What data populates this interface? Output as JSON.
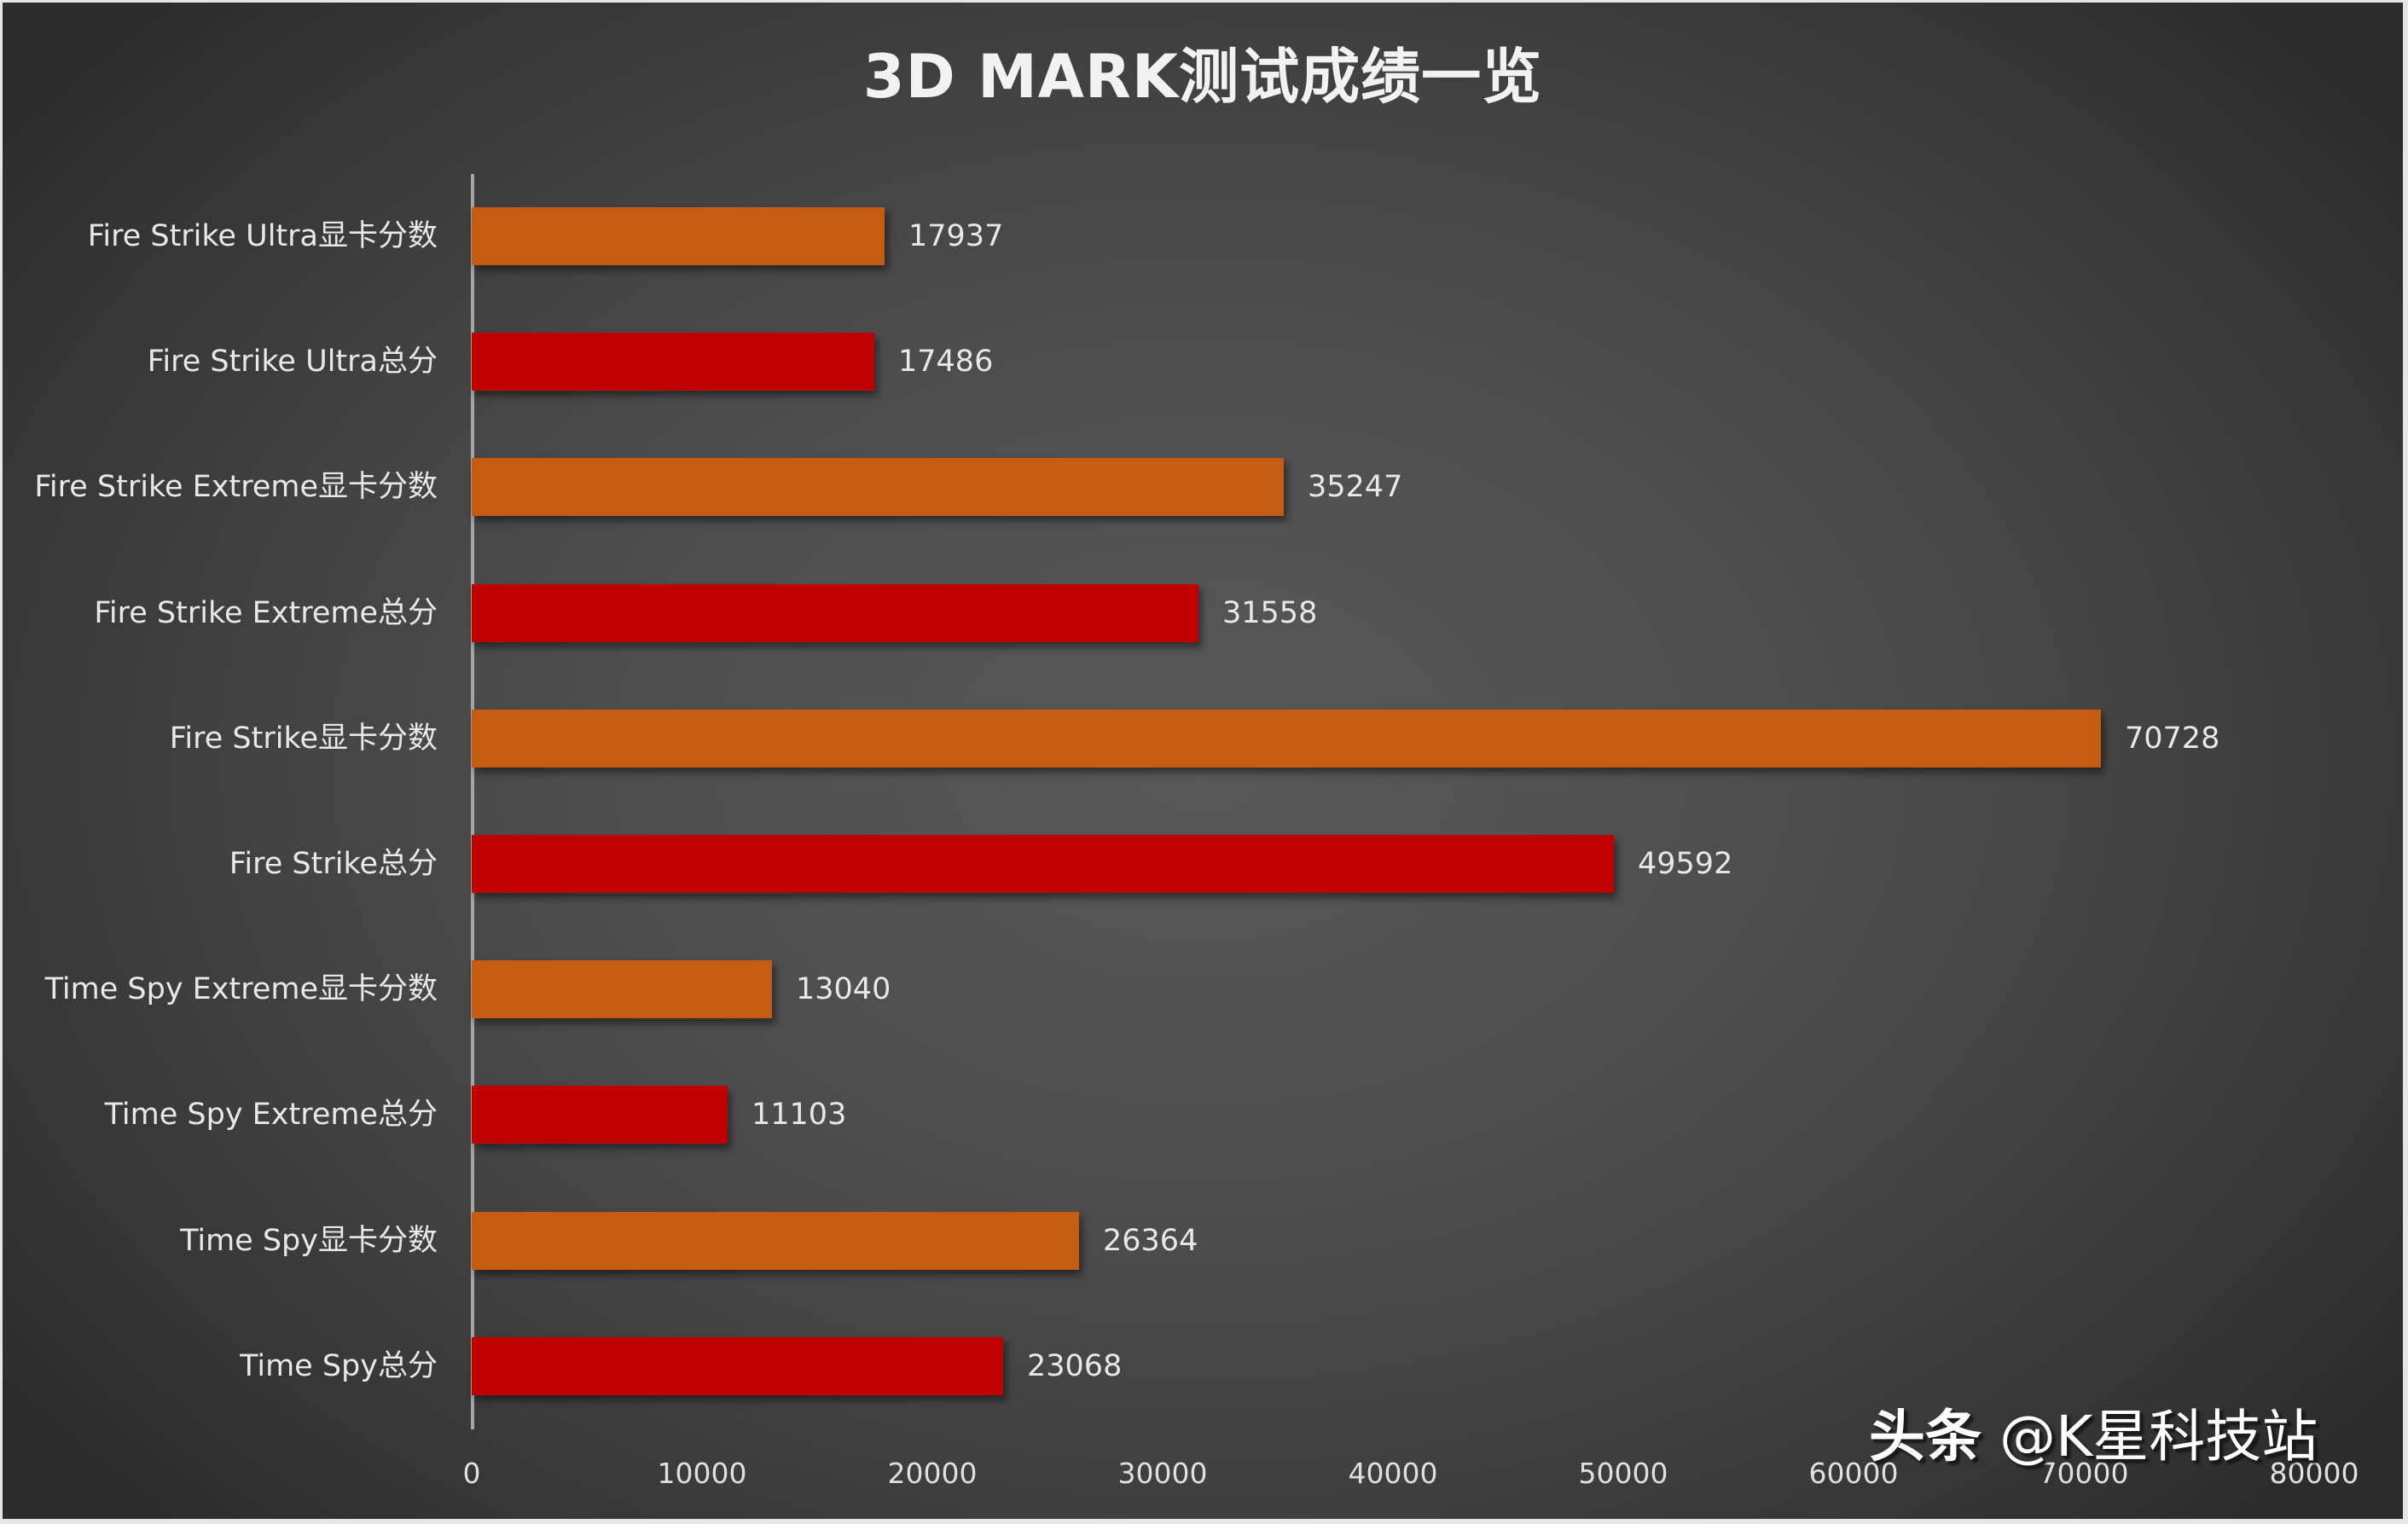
{
  "chart_data": {
    "type": "bar",
    "orientation": "horizontal",
    "title": "3D MARK测试成绩一览",
    "xlabel": "",
    "ylabel": "",
    "xlim": [
      0,
      80000
    ],
    "x_ticks": [
      "0",
      "10000",
      "20000",
      "30000",
      "40000",
      "50000",
      "60000",
      "70000",
      "80000"
    ],
    "grid": false,
    "legend": null,
    "categories": [
      "Fire Strike Ultra显卡分数",
      "Fire Strike Ultra总分",
      "Fire Strike Extreme显卡分数",
      "Fire Strike Extreme总分",
      "Fire Strike显卡分数",
      "Fire Strike总分",
      "Time Spy  Extreme显卡分数",
      "Time Spy  Extreme总分",
      "Time Spy显卡分数",
      "Time Spy总分"
    ],
    "values": [
      17937,
      17486,
      35247,
      31558,
      70728,
      49592,
      13040,
      11103,
      26364,
      23068
    ],
    "bar_colors": [
      "#c55a11",
      "#c00000",
      "#c55a11",
      "#c00000",
      "#c55a11",
      "#c00000",
      "#c55a11",
      "#c00000",
      "#c55a11",
      "#c00000"
    ],
    "data_labels": true
  },
  "colors": {
    "graphics_score_bar": "#c55a11",
    "total_score_bar": "#c00000",
    "text": "#e8e8e8"
  },
  "rows": [
    {
      "label": "Fire Strike Ultra显卡分数",
      "value": "17937"
    },
    {
      "label": "Fire Strike Ultra总分",
      "value": "17486"
    },
    {
      "label": "Fire Strike Extreme显卡分数",
      "value": "35247"
    },
    {
      "label": "Fire Strike Extreme总分",
      "value": "31558"
    },
    {
      "label": "Fire Strike显卡分数",
      "value": "70728"
    },
    {
      "label": "Fire Strike总分",
      "value": "49592"
    },
    {
      "label": "Time Spy  Extreme显卡分数",
      "value": "13040"
    },
    {
      "label": "Time Spy  Extreme总分",
      "value": "11103"
    },
    {
      "label": "Time Spy显卡分数",
      "value": "26364"
    },
    {
      "label": "Time Spy总分",
      "value": "23068"
    }
  ],
  "watermark": {
    "brand": "头条",
    "handle": " @K星科技站"
  }
}
